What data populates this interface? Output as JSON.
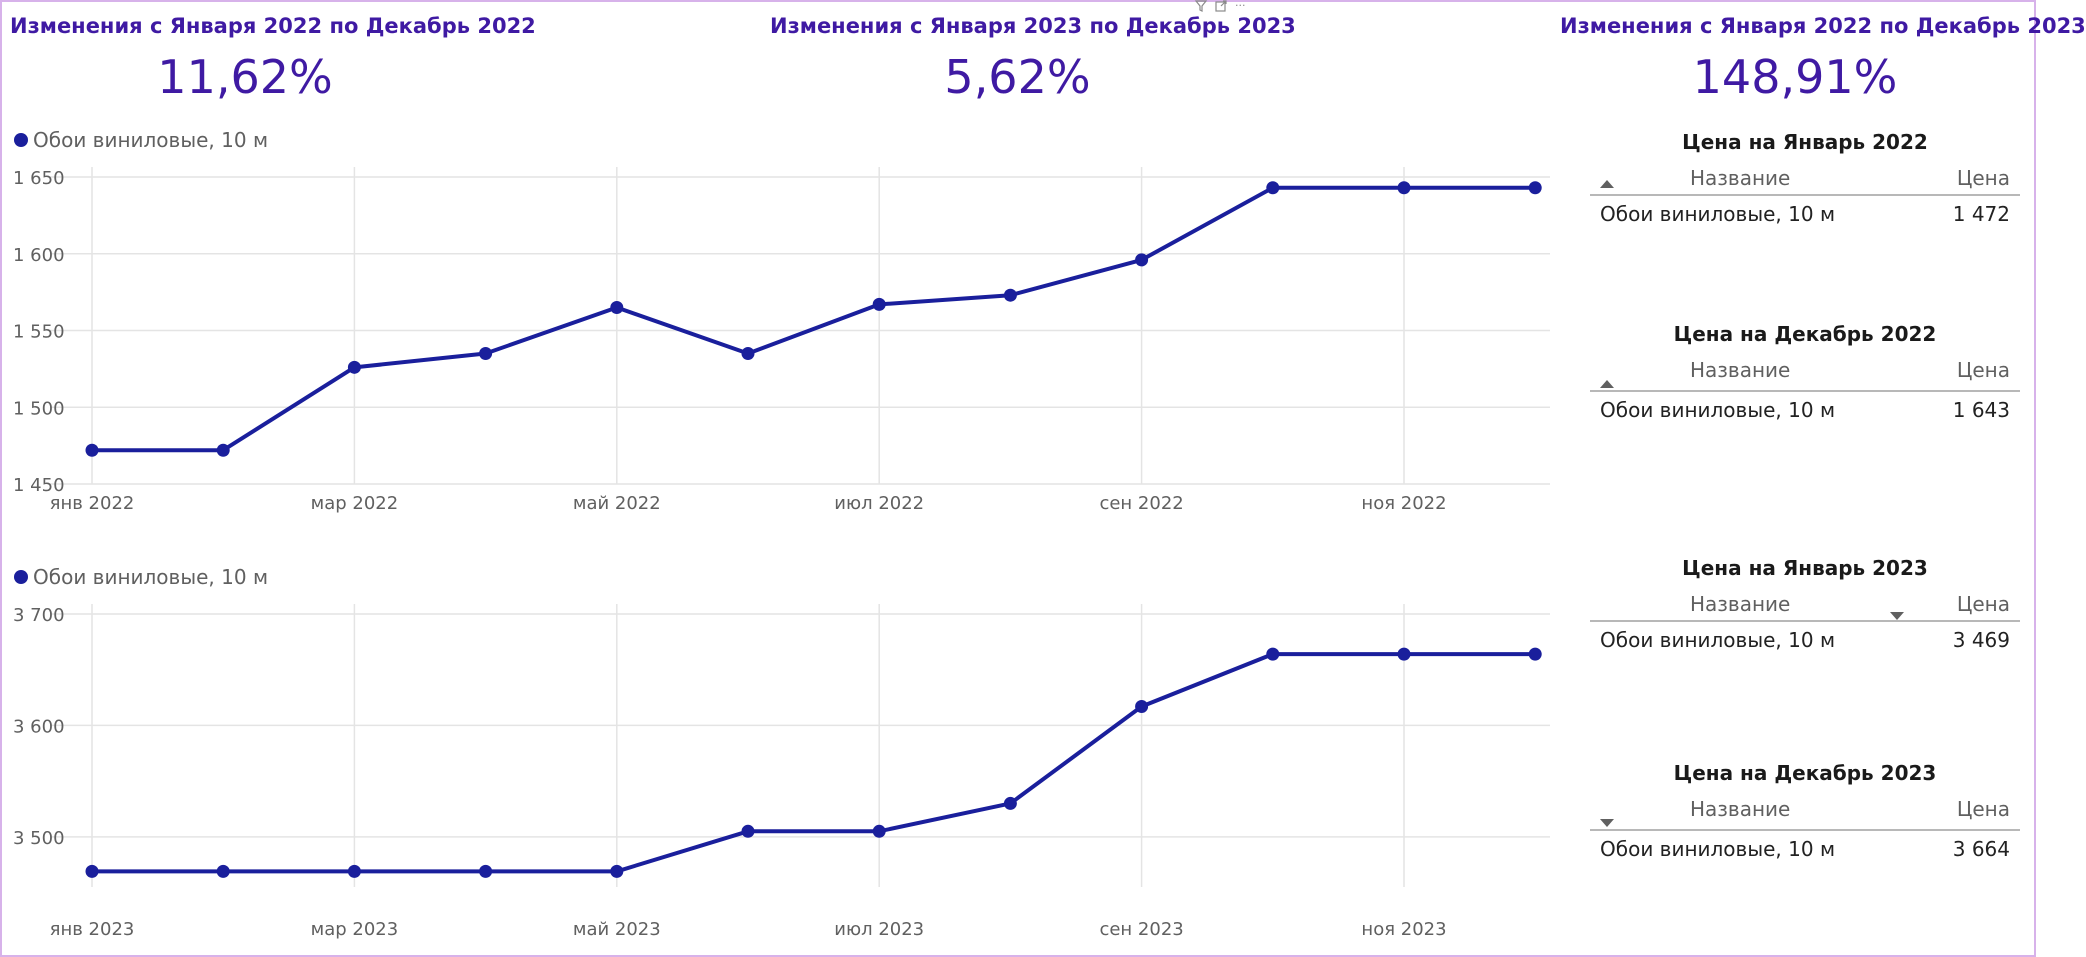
{
  "kpis": [
    {
      "title": "Изменения с Января 2022 по Декабрь 2022",
      "value": "11,62%"
    },
    {
      "title": "Изменения с Января 2023 по Декабрь 2023",
      "value": "5,62%"
    },
    {
      "title": "Изменения с Января 2022 по Декабрь 2023",
      "value": "148,91%"
    }
  ],
  "visual_header": {
    "filter_icon": "filter-icon",
    "focus_icon": "focus-mode-icon",
    "more_label": "···"
  },
  "colors": {
    "accent": "#3f1aa3",
    "series": "#1a1f9c",
    "grid": "#e4e4e4",
    "axis_text": "#606060",
    "border": "#d7b2ea"
  },
  "chart_data": [
    {
      "type": "line",
      "legend": "Обои виниловые, 10 м",
      "series": [
        {
          "name": "Обои виниловые, 10 м",
          "values": [
            1472,
            1472,
            1526,
            1535,
            1565,
            1535,
            1567,
            1573,
            1596,
            1643,
            1643,
            1643
          ]
        }
      ],
      "x_tick_labels": [
        "янв 2022",
        "мар 2022",
        "май 2022",
        "июл 2022",
        "сен 2022",
        "ноя 2022"
      ],
      "y_ticks": [
        1450,
        1500,
        1550,
        1600,
        1650
      ],
      "y_tick_labels": [
        "1 450",
        "1 500",
        "1 550",
        "1 600",
        "1 650"
      ],
      "ylim": [
        1450,
        1650
      ],
      "grid": true,
      "legend_position": "top-left"
    },
    {
      "type": "line",
      "legend": "Обои виниловые, 10 м",
      "series": [
        {
          "name": "Обои виниловые, 10 м",
          "values": [
            3469,
            3469,
            3469,
            3469,
            3469,
            3505,
            3505,
            3530,
            3617,
            3664,
            3664,
            3664
          ]
        }
      ],
      "x_tick_labels": [
        "янв 2023",
        "мар 2023",
        "май 2023",
        "июл 2023",
        "сен 2023",
        "ноя 2023"
      ],
      "y_ticks": [
        3500,
        3600,
        3700
      ],
      "y_tick_labels": [
        "3 500",
        "3 600",
        "3 700"
      ],
      "ylim": [
        3455,
        3700
      ],
      "grid": true,
      "legend_position": "top-left"
    }
  ],
  "tables": [
    {
      "title": "Цена на Январь 2022",
      "col_name": "Название",
      "col_price": "Цена",
      "sort": "name-asc",
      "rows": [
        {
          "name": "Обои виниловые, 10 м",
          "price": "1 472"
        }
      ]
    },
    {
      "title": "Цена на Декабрь 2022",
      "col_name": "Название",
      "col_price": "Цена",
      "sort": "name-asc",
      "rows": [
        {
          "name": "Обои виниловые, 10 м",
          "price": "1 643"
        }
      ]
    },
    {
      "title": "Цена на Январь 2023",
      "col_name": "Название",
      "col_price": "Цена",
      "sort": "price-desc",
      "rows": [
        {
          "name": "Обои виниловые, 10 м",
          "price": "3 469"
        }
      ]
    },
    {
      "title": "Цена на Декабрь 2023",
      "col_name": "Название",
      "col_price": "Цена",
      "sort": "name-desc",
      "rows": [
        {
          "name": "Обои виниловые, 10 м",
          "price": "3 664"
        }
      ]
    }
  ]
}
